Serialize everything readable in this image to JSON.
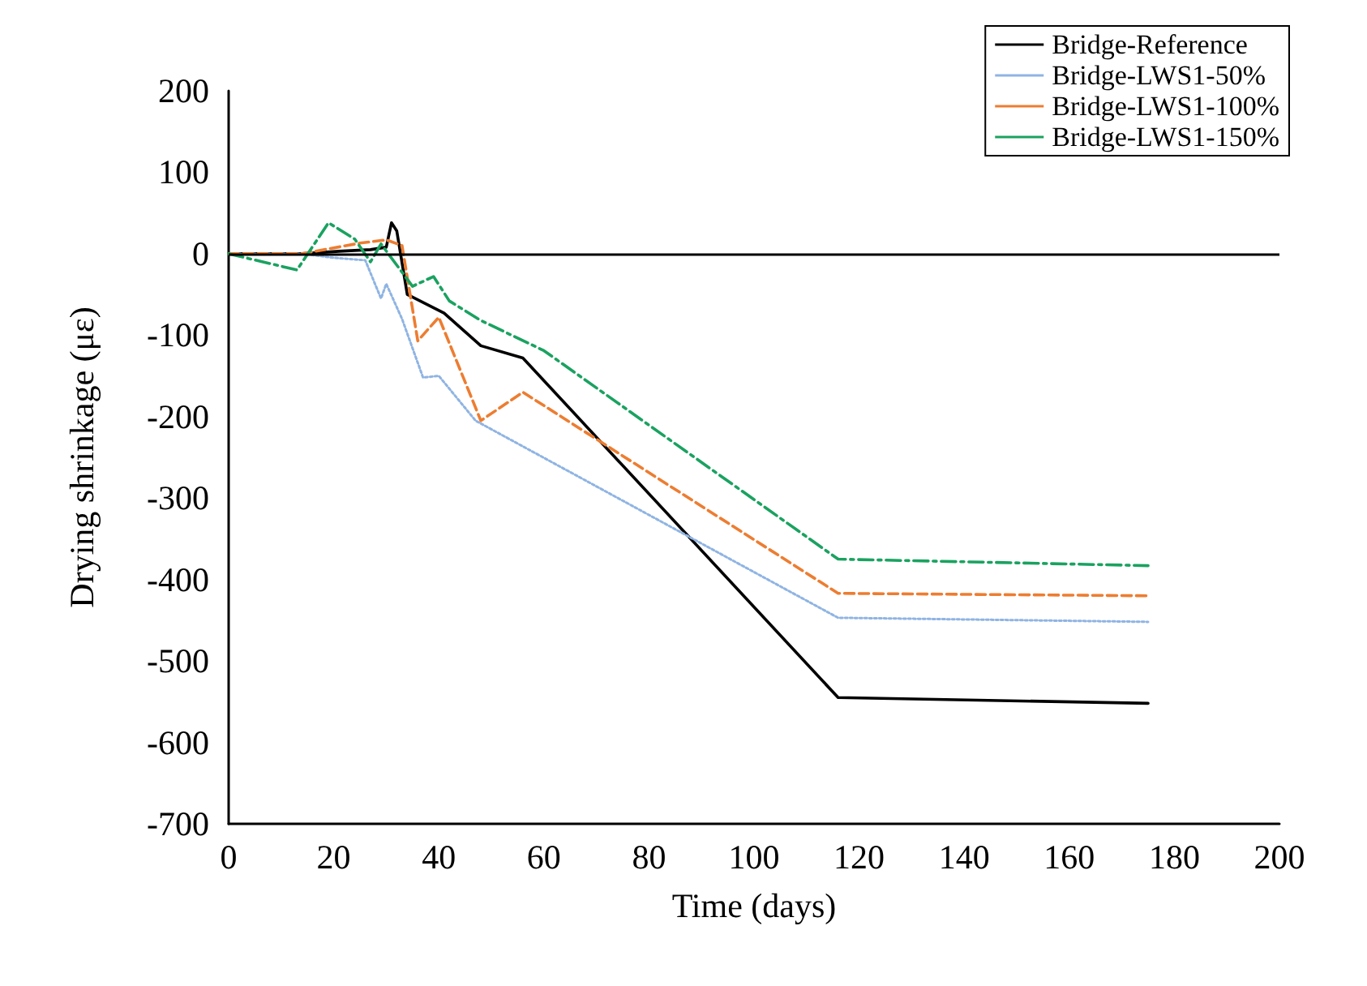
{
  "chart_data": {
    "type": "line",
    "xlabel": "Time (days)",
    "ylabel": "Drying shrinkage (με)",
    "xlim": [
      0,
      200
    ],
    "xticks": [
      0,
      20,
      40,
      60,
      80,
      100,
      120,
      140,
      160,
      180,
      200
    ],
    "ylim": [
      -700,
      200
    ],
    "yticks": [
      -700,
      -600,
      -500,
      -400,
      -300,
      -200,
      -100,
      0,
      100,
      200
    ],
    "grid": false,
    "legend": "top right",
    "marker": "none",
    "ref_lines": [
      {
        "axis": "y",
        "value": 0,
        "color": "#000000"
      }
    ],
    "series": [
      {
        "name": "Bridge-Reference",
        "color": "#000000",
        "line_style": "solid",
        "x": [
          0,
          14,
          21,
          27,
          30,
          31,
          32,
          34,
          41,
          48,
          56,
          116,
          175
        ],
        "values": [
          0,
          0,
          3,
          5,
          8,
          38,
          28,
          -50,
          -73,
          -113,
          -128,
          -545,
          -552
        ]
      },
      {
        "name": "Bridge-LWS1-50%",
        "color": "#8fb4e3",
        "line_style": "dotted",
        "x": [
          0,
          14,
          20,
          26,
          29,
          30,
          33,
          37,
          40,
          47,
          116,
          175
        ],
        "values": [
          0,
          0,
          -5,
          -8,
          -55,
          -37,
          -80,
          -152,
          -150,
          -205,
          -447,
          -452
        ]
      },
      {
        "name": "Bridge-LWS1-100%",
        "color": "#ed7d31",
        "line_style": "dashed",
        "x": [
          0,
          14,
          25,
          30,
          33,
          36,
          40,
          48,
          56,
          116,
          175
        ],
        "values": [
          0,
          0,
          13,
          17,
          10,
          -107,
          -78,
          -205,
          -170,
          -417,
          -420
        ]
      },
      {
        "name": "Bridge-LWS1-150%",
        "color": "#1aa260",
        "line_style": "dashdot",
        "x": [
          0,
          13,
          19,
          24,
          27,
          29,
          35,
          39,
          42,
          48,
          60,
          116,
          175
        ],
        "values": [
          0,
          -20,
          38,
          18,
          -10,
          12,
          -40,
          -28,
          -58,
          -82,
          -119,
          -375,
          -383
        ]
      }
    ]
  }
}
